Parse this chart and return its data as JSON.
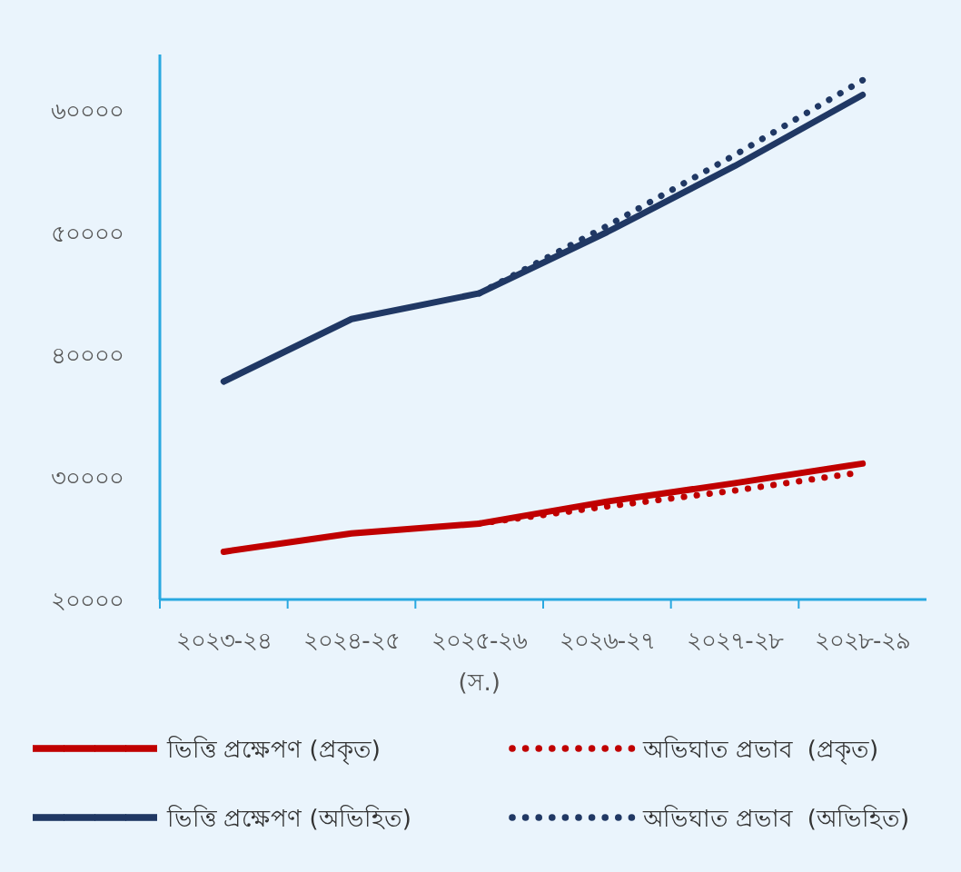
{
  "chart_data": {
    "type": "line",
    "categories": [
      "২০২৩-২৪",
      "২০২৪-২৫",
      "২০২৫-২৬",
      "২০২৬-২৭",
      "২০২৭-২৮",
      "২০২৮-২৯"
    ],
    "annotations": [
      "(স.)"
    ],
    "ylim": [
      20000,
      64500
    ],
    "yticks": [
      {
        "value": 20000,
        "label": "২০০০০"
      },
      {
        "value": 30000,
        "label": "৩০০০০"
      },
      {
        "value": 40000,
        "label": "৪০০০০"
      },
      {
        "value": 50000,
        "label": "৫০০০০"
      },
      {
        "value": 60000,
        "label": "৬০০০০"
      }
    ],
    "grid": false,
    "legend": "bottom",
    "marker": "none",
    "series": [
      {
        "name": "ভিত্তি প্রক্ষেপণ (প্রকৃত)",
        "color": "#c00000",
        "line_style": "solid",
        "values": [
          23900,
          25400,
          26200,
          28000,
          29500,
          31100
        ]
      },
      {
        "name": "অভিঘাত প্রভাব  (প্রকৃত)",
        "color": "#c00000",
        "line_style": "dotted",
        "values": [
          null,
          null,
          26200,
          27600,
          28900,
          30400
        ]
      },
      {
        "name": "ভিত্তি প্রক্ষেপণ (অভিহিত)",
        "color": "#203864",
        "line_style": "solid",
        "values": [
          37800,
          42900,
          45000,
          50000,
          55400,
          61200
        ]
      },
      {
        "name": "অভিঘাত প্রভাব  (অভিহিত)",
        "color": "#203864",
        "line_style": "dotted",
        "values": [
          null,
          null,
          45000,
          50500,
          56300,
          62400
        ]
      }
    ]
  }
}
